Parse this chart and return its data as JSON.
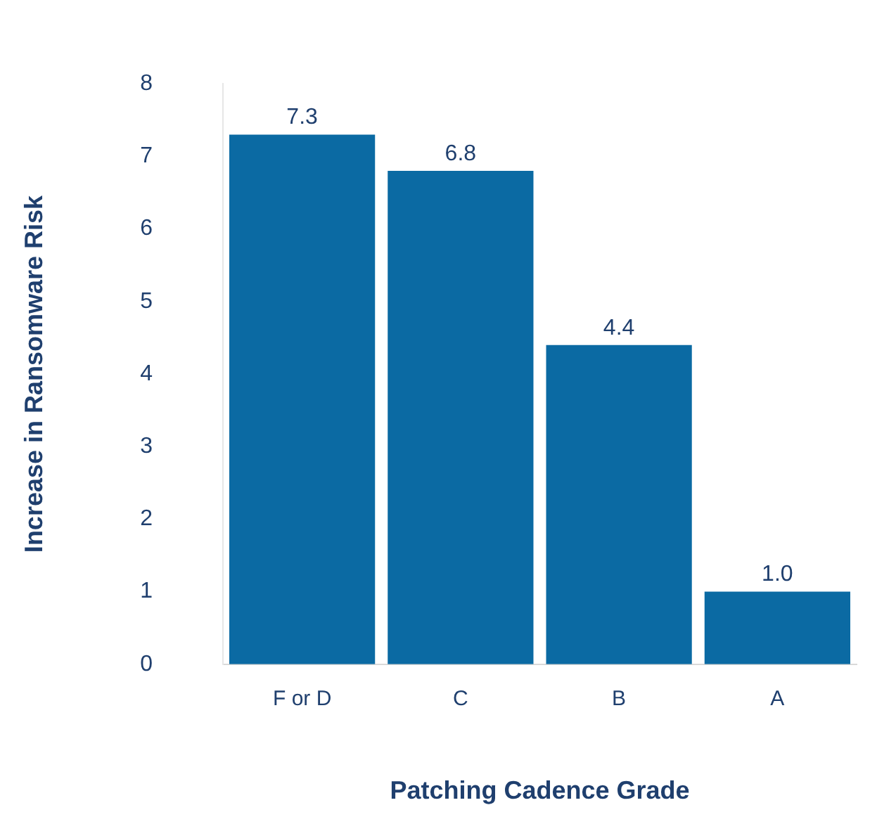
{
  "chart_data": {
    "type": "bar",
    "xlabel": "Patching Cadence Grade",
    "ylabel": "Increase in Ransomware Risk",
    "categories": [
      "F or D",
      "C",
      "B",
      "A"
    ],
    "values": [
      7.3,
      6.8,
      4.4,
      1.0
    ],
    "value_labels": [
      "7.3",
      "6.8",
      "4.4",
      "1.0"
    ],
    "color": "#0b6aa3",
    "ylim": [
      0,
      8
    ],
    "yticks": [
      0,
      1,
      2,
      3,
      4,
      5,
      6,
      7,
      8
    ],
    "grid": false,
    "legend": false
  }
}
